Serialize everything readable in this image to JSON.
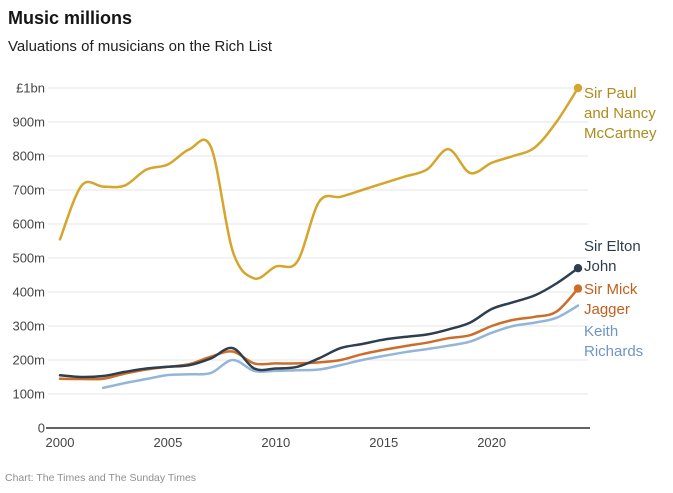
{
  "header": {
    "title": "Music millions",
    "subtitle": "Valuations of musicians on the Rich List"
  },
  "footer": {
    "credit": "Chart: The Times and The Sunday Times"
  },
  "colors": {
    "background": "#ffffff",
    "gridline": "#e6e6e6",
    "axis_line": "#2e2e2e",
    "tick_label": "#454545",
    "title": "#151515",
    "footer": "#8f8f8f"
  },
  "chart_data": {
    "type": "line",
    "title": "Music millions",
    "subtitle": "Valuations of musicians on the Rich List",
    "unit": "GBP millions",
    "xlim": [
      2000,
      2024
    ],
    "ylim": [
      0,
      1000
    ],
    "grid": true,
    "legend_position": "right-of-line-ends",
    "x": [
      2000,
      2001,
      2002,
      2003,
      2004,
      2005,
      2006,
      2007,
      2008,
      2009,
      2010,
      2011,
      2012,
      2013,
      2014,
      2015,
      2016,
      2017,
      2018,
      2019,
      2020,
      2021,
      2022,
      2023,
      2024
    ],
    "x_ticks": [
      2000,
      2005,
      2010,
      2015,
      2020
    ],
    "y_ticks": [
      {
        "value": 1000,
        "label": "£1bn"
      },
      {
        "value": 900,
        "label": "900m"
      },
      {
        "value": 800,
        "label": "800m"
      },
      {
        "value": 700,
        "label": "700m"
      },
      {
        "value": 600,
        "label": "600m"
      },
      {
        "value": 500,
        "label": "500m"
      },
      {
        "value": 400,
        "label": "400m"
      },
      {
        "value": 300,
        "label": "300m"
      },
      {
        "value": 200,
        "label": "200m"
      },
      {
        "value": 100,
        "label": "100m"
      },
      {
        "value": 0,
        "label": "0"
      }
    ],
    "series": [
      {
        "name": "Sir Paul and Nancy McCartney",
        "label_lines": [
          "Sir Paul",
          "and Nancy",
          "McCartney"
        ],
        "color": "#d5a52c",
        "label_color": "#ad8b1d",
        "end_dot": true,
        "values": [
          555,
          713,
          710,
          713,
          760,
          775,
          820,
          825,
          520,
          440,
          475,
          490,
          665,
          680,
          700,
          720,
          740,
          760,
          820,
          750,
          780,
          800,
          825,
          900,
          1000
        ]
      },
      {
        "name": "Keith Richards",
        "label_lines": [
          "Keith",
          "Richards"
        ],
        "color": "#93b5da",
        "label_color": "#6e96c5",
        "end_dot": false,
        "values": [
          null,
          null,
          118,
          132,
          144,
          156,
          158,
          162,
          200,
          168,
          168,
          170,
          172,
          185,
          200,
          212,
          223,
          232,
          242,
          254,
          280,
          300,
          310,
          324,
          360
        ]
      },
      {
        "name": "Sir Mick Jagger",
        "label_lines": [
          "Sir Mick",
          "Jagger"
        ],
        "color": "#cc6d2a",
        "label_color": "#c05f1d",
        "end_dot": true,
        "values": [
          145,
          144,
          145,
          160,
          172,
          180,
          188,
          210,
          225,
          190,
          190,
          190,
          193,
          200,
          217,
          230,
          241,
          251,
          264,
          273,
          300,
          318,
          327,
          342,
          410
        ]
      },
      {
        "name": "Sir Elton John",
        "label_lines": [
          "Sir Elton",
          "John"
        ],
        "color": "#2e3e4e",
        "label_color": "#2e3e4e",
        "end_dot": true,
        "values": [
          155,
          150,
          153,
          165,
          175,
          180,
          185,
          205,
          235,
          175,
          175,
          180,
          205,
          235,
          247,
          260,
          268,
          275,
          290,
          310,
          350,
          370,
          390,
          425,
          470
        ]
      }
    ]
  }
}
